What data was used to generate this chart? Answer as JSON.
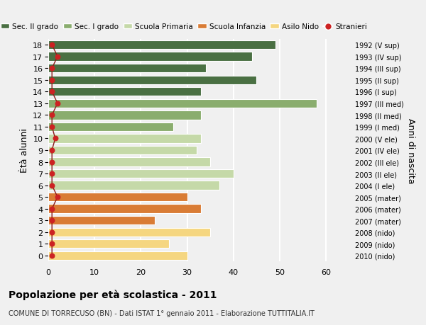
{
  "ages": [
    18,
    17,
    16,
    15,
    14,
    13,
    12,
    11,
    10,
    9,
    8,
    7,
    6,
    5,
    4,
    3,
    2,
    1,
    0
  ],
  "years": [
    "1992 (V sup)",
    "1993 (IV sup)",
    "1994 (III sup)",
    "1995 (II sup)",
    "1996 (I sup)",
    "1997 (III med)",
    "1998 (II med)",
    "1999 (I med)",
    "2000 (V ele)",
    "2001 (IV ele)",
    "2002 (III ele)",
    "2003 (II ele)",
    "2004 (I ele)",
    "2005 (mater)",
    "2006 (mater)",
    "2007 (mater)",
    "2008 (nido)",
    "2009 (nido)",
    "2010 (nido)"
  ],
  "bar_values": [
    49,
    44,
    34,
    45,
    33,
    58,
    33,
    27,
    33,
    32,
    35,
    40,
    37,
    30,
    33,
    23,
    35,
    26,
    30
  ],
  "bar_colors": [
    "#4a7043",
    "#4a7043",
    "#4a7043",
    "#4a7043",
    "#4a7043",
    "#8aad6e",
    "#8aad6e",
    "#8aad6e",
    "#c5d9a8",
    "#c5d9a8",
    "#c5d9a8",
    "#c5d9a8",
    "#c5d9a8",
    "#d97c35",
    "#d97c35",
    "#d97c35",
    "#f5d680",
    "#f5d680",
    "#f5d680"
  ],
  "stranieri_x": [
    0.8,
    2.0,
    0.8,
    0.8,
    0.8,
    2.0,
    0.8,
    0.8,
    1.5,
    0.8,
    0.8,
    0.8,
    0.8,
    2.0,
    0.8,
    0.8,
    0.8,
    0.8,
    0.8
  ],
  "xlim": [
    0,
    65
  ],
  "ylabel_left": "Ètà alunni",
  "ylabel_right": "Anni di nascita",
  "title": "Popolazione per età scolastica - 2011",
  "subtitle": "COMUNE DI TORRECUSO (BN) - Dati ISTAT 1° gennaio 2011 - Elaborazione TUTTITALIA.IT",
  "legend_labels": [
    "Sec. II grado",
    "Sec. I grado",
    "Scuola Primaria",
    "Scuola Infanzia",
    "Asilo Nido",
    "Stranieri"
  ],
  "legend_colors": [
    "#4a7043",
    "#8aad6e",
    "#c5d9a8",
    "#d97c35",
    "#f5d680",
    "#cc2222"
  ],
  "bg_color": "#f0f0f0",
  "grid_color": "#ffffff",
  "bar_height": 0.75,
  "xticks": [
    0,
    10,
    20,
    30,
    40,
    50,
    60
  ]
}
